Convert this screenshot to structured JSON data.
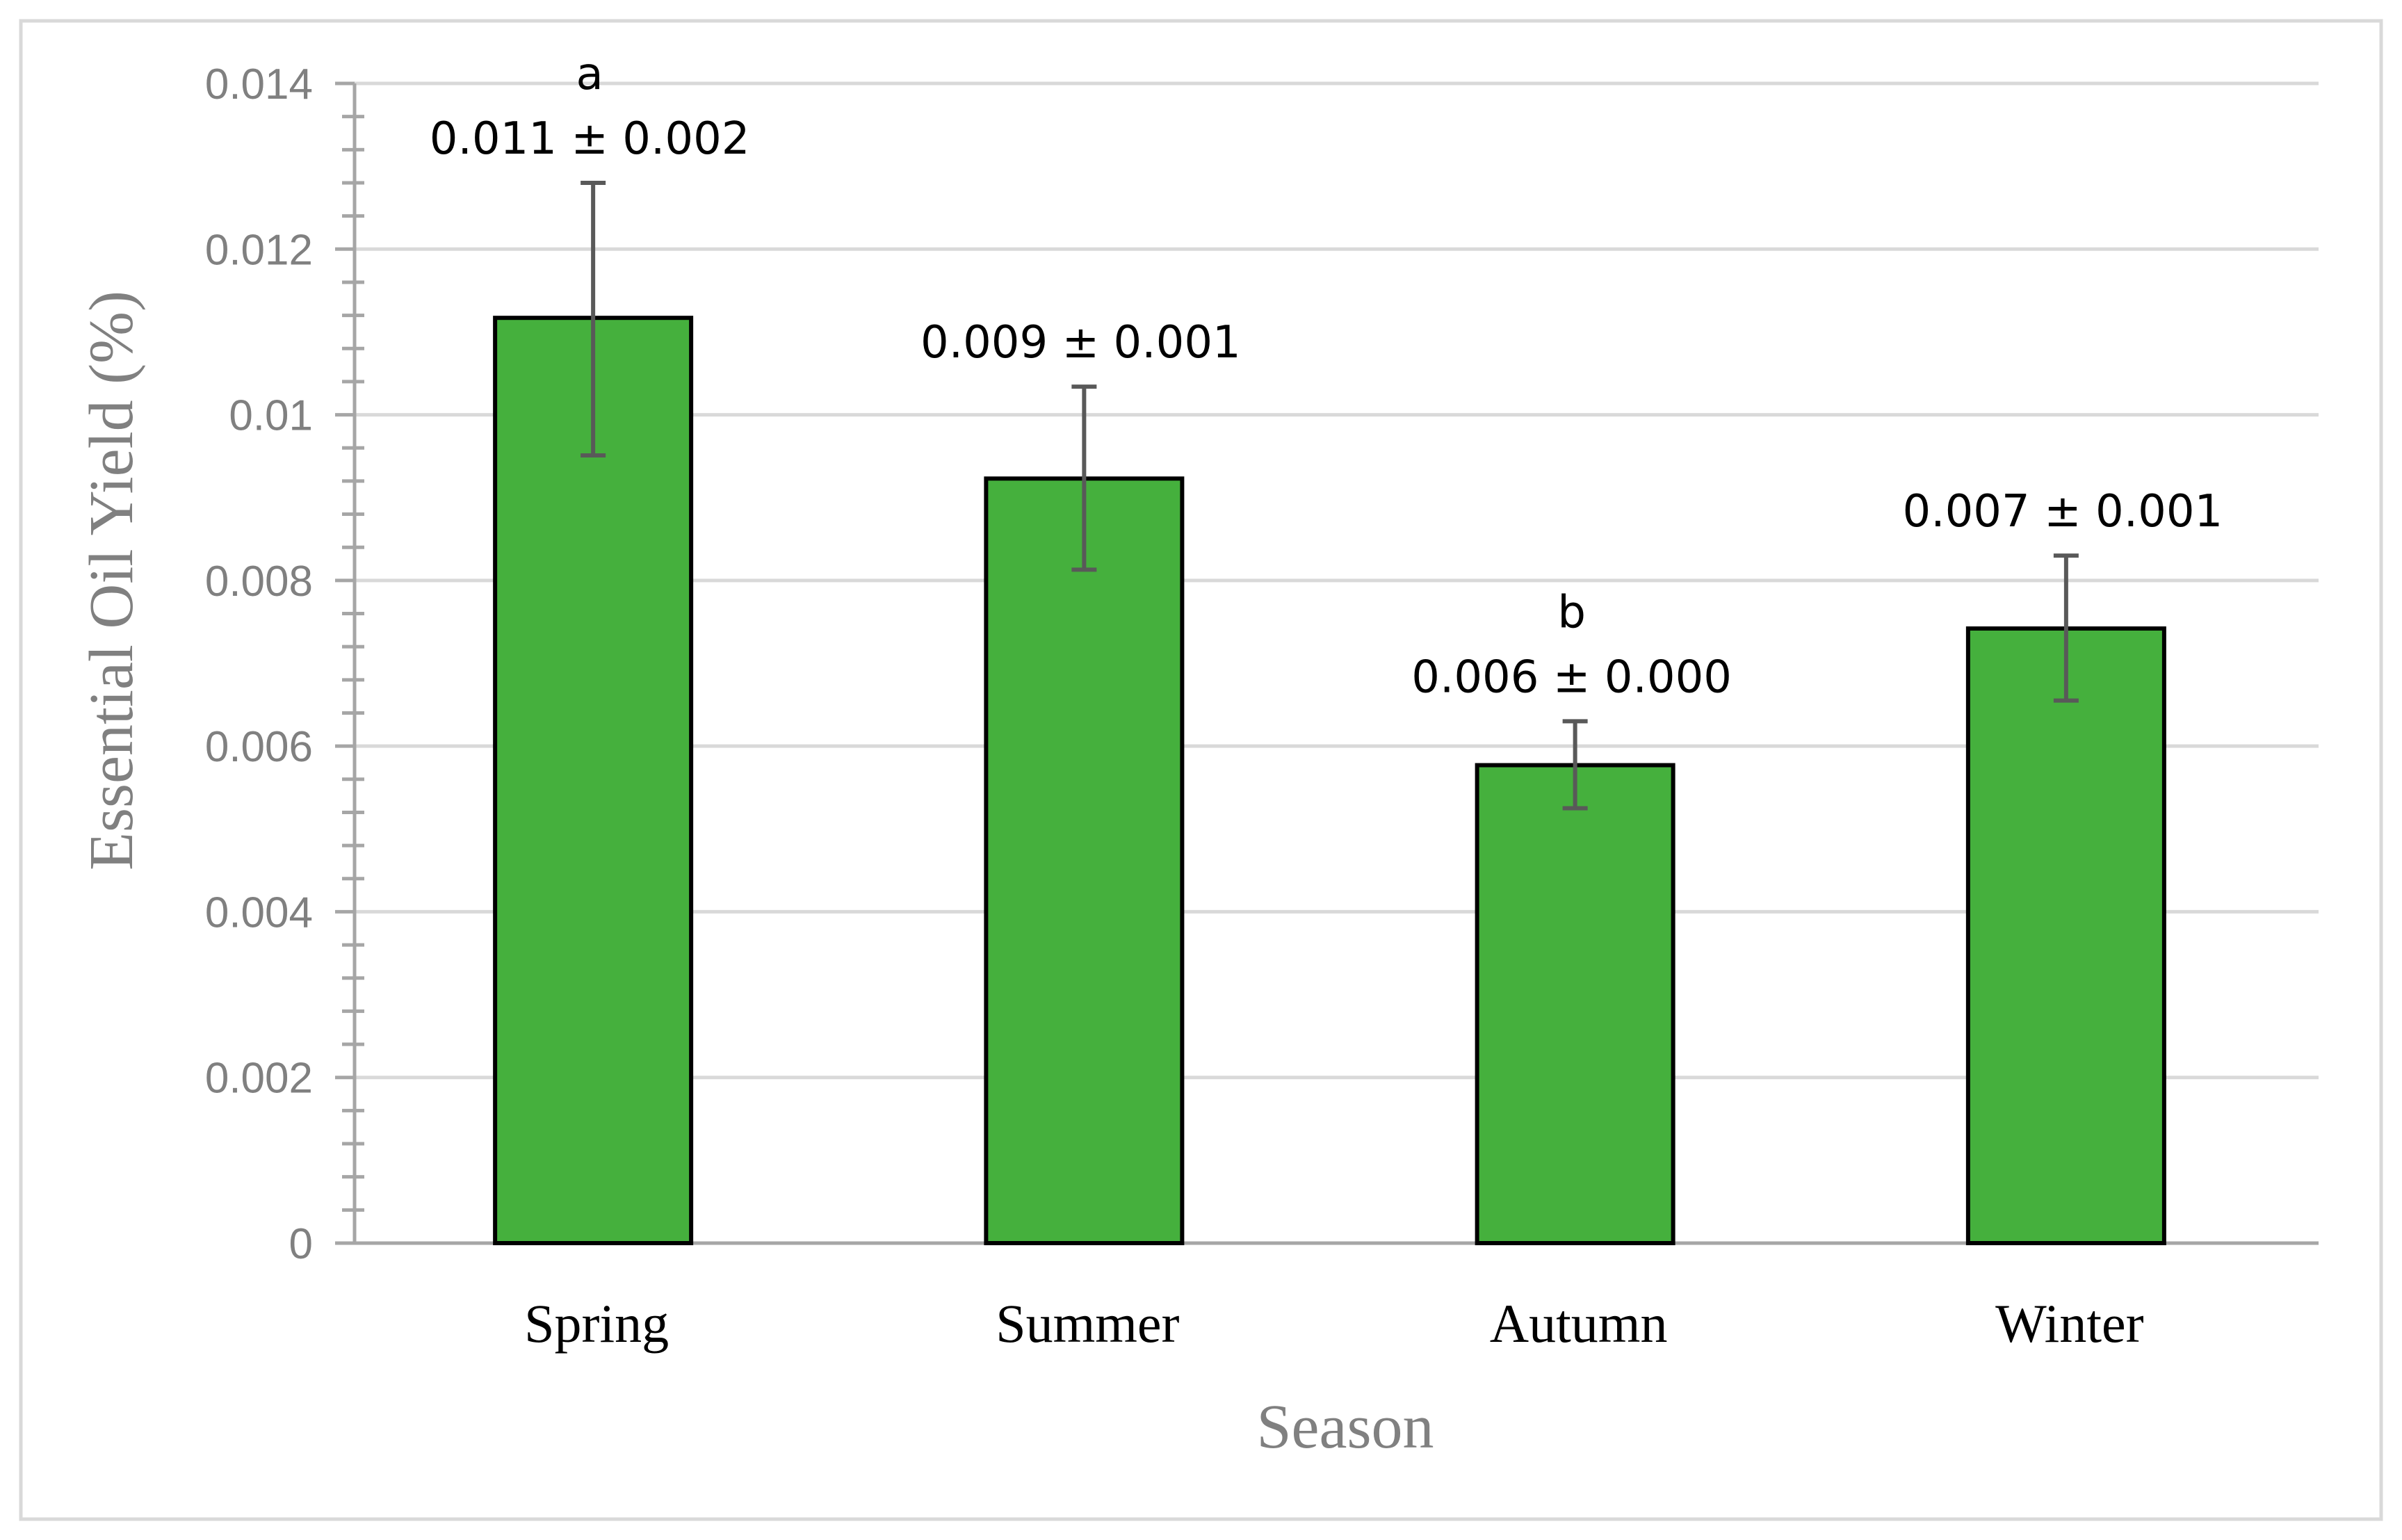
{
  "chart_data": {
    "type": "bar",
    "title": "",
    "xlabel": "Season",
    "ylabel": "Essential Oil Yield (%)",
    "categories": [
      "Spring",
      "Summer",
      "Autumn",
      "Winter"
    ],
    "values": [
      0.01117,
      0.00923,
      0.00577,
      0.00742
    ],
    "error_low": [
      0.00951,
      0.00813,
      0.00525,
      0.00655
    ],
    "error_high": [
      0.0128,
      0.01034,
      0.0063,
      0.0083
    ],
    "data_labels": [
      "0.011 ± 0.002",
      "0.009 ± 0.001",
      "0.006 ± 0.000",
      "0.007 ± 0.001"
    ],
    "significance_letters": [
      "a",
      "",
      "b",
      ""
    ],
    "ylim": [
      0,
      0.014
    ],
    "yticks": [
      0,
      0.002,
      0.004,
      0.006,
      0.008,
      0.01,
      0.012,
      0.014
    ],
    "ytick_labels": [
      "0",
      "0.002",
      "0.004",
      "0.006",
      "0.008",
      "0.01",
      "0.012",
      "0.014"
    ],
    "grid": true,
    "legend": "none",
    "colors": {
      "bar_fill": "#45B03D",
      "bar_stroke": "#000000",
      "error_bar": "#595959",
      "grid": "#D9D9D9",
      "axis": "#A6A6A6",
      "frame": "#D9D9D9"
    }
  }
}
